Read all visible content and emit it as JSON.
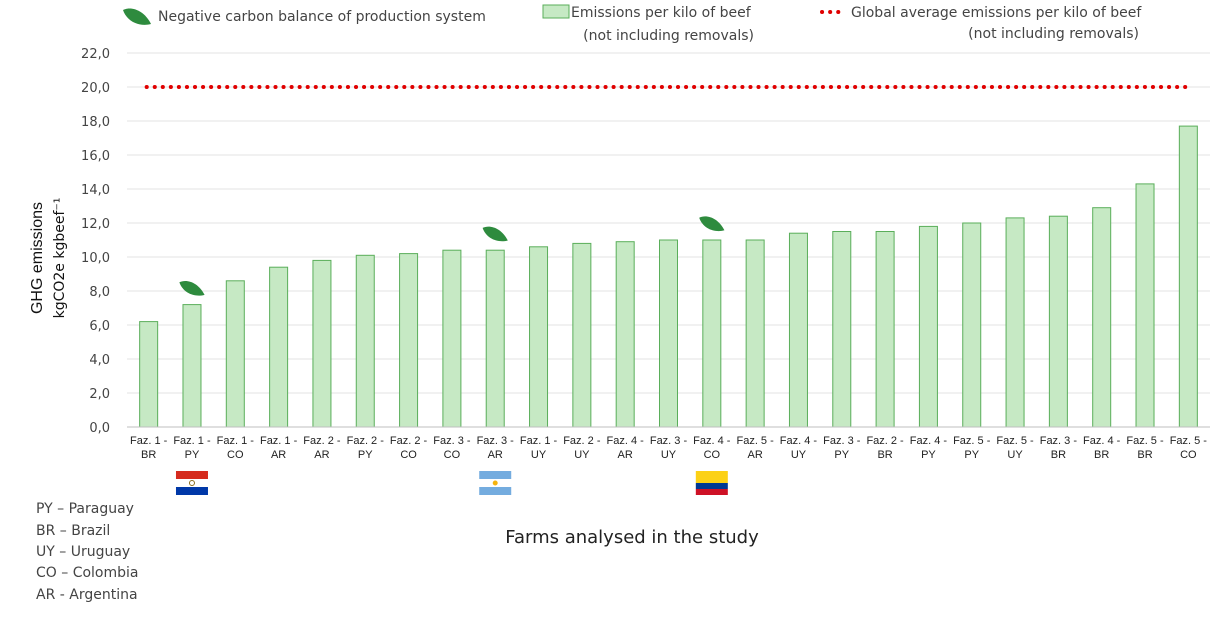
{
  "chart_data": {
    "type": "bar",
    "ylabel": "GHG emissions",
    "ylabel_unit": "kgCO2e kgbeef⁻¹",
    "xlabel": "Farms analysed in the study",
    "ylim": [
      0,
      22
    ],
    "yticks": [
      "0,0",
      "2,0",
      "4,0",
      "6,0",
      "8,0",
      "10,0",
      "12,0",
      "14,0",
      "16,0",
      "18,0",
      "20,0",
      "22,0"
    ],
    "grid": true,
    "categories": [
      {
        "line1": "Faz. 1 -",
        "line2": "BR"
      },
      {
        "line1": "Faz. 1 -",
        "line2": "PY"
      },
      {
        "line1": "Faz. 1 -",
        "line2": "CO"
      },
      {
        "line1": "Faz. 1 -",
        "line2": "AR"
      },
      {
        "line1": "Faz. 2 -",
        "line2": "AR"
      },
      {
        "line1": "Faz. 2 -",
        "line2": "PY"
      },
      {
        "line1": "Faz. 2 -",
        "line2": "CO"
      },
      {
        "line1": "Faz. 3 -",
        "line2": "CO"
      },
      {
        "line1": "Faz. 3 -",
        "line2": "AR"
      },
      {
        "line1": "Faz. 1 -",
        "line2": "UY"
      },
      {
        "line1": "Faz. 2 -",
        "line2": "UY"
      },
      {
        "line1": "Faz. 4 -",
        "line2": "AR"
      },
      {
        "line1": "Faz. 3 -",
        "line2": "UY"
      },
      {
        "line1": "Faz. 4 -",
        "line2": "CO"
      },
      {
        "line1": "Faz. 5 -",
        "line2": "AR"
      },
      {
        "line1": "Faz. 4 -",
        "line2": "UY"
      },
      {
        "line1": "Faz. 3 -",
        "line2": "PY"
      },
      {
        "line1": "Faz. 2 -",
        "line2": "BR"
      },
      {
        "line1": "Faz. 4 -",
        "line2": "PY"
      },
      {
        "line1": "Faz. 5 -",
        "line2": "PY"
      },
      {
        "line1": "Faz. 5 -",
        "line2": "UY"
      },
      {
        "line1": "Faz. 3 -",
        "line2": "BR"
      },
      {
        "line1": "Faz. 4 -",
        "line2": "BR"
      },
      {
        "line1": "Faz. 5 -",
        "line2": "BR"
      },
      {
        "line1": "Faz. 5 -",
        "line2": "CO"
      }
    ],
    "series": [
      {
        "name_line1": "Emissions per kilo of beef",
        "name_line2": "(not including removals)",
        "type": "bar",
        "values": [
          6.2,
          7.2,
          8.6,
          9.4,
          9.8,
          10.1,
          10.2,
          10.4,
          10.4,
          10.6,
          10.8,
          10.9,
          11.0,
          11.0,
          11.0,
          11.4,
          11.5,
          11.5,
          11.8,
          12.0,
          12.3,
          12.4,
          12.9,
          14.3,
          17.7
        ]
      },
      {
        "name_line1": "Global average emissions per kilo of beef",
        "name_line2": "(not including removals)",
        "type": "reference-line",
        "value": 20.0
      }
    ],
    "negative_carbon_balance_legend": "Negative carbon balance of production system",
    "negative_carbon_balance_farms": [
      1,
      8,
      13
    ],
    "legend_placement": "top",
    "country_key": [
      "PY – Paraguay",
      "BR – Brazil",
      "UY – Uruguay",
      "CO – Colombia",
      "AR - Argentina"
    ],
    "flags": [
      {
        "country": "PY",
        "under_category": 1
      },
      {
        "country": "AR",
        "under_category": 8
      },
      {
        "country": "CO",
        "under_category": 13
      }
    ]
  },
  "colors": {
    "bar_fill": "#c6e9c4",
    "bar_stroke": "#5aae5a",
    "reference_line": "#e00000",
    "leaf": "#2e8b3e",
    "grid": "#e3e3e3",
    "axis": "#bfbfbf"
  }
}
